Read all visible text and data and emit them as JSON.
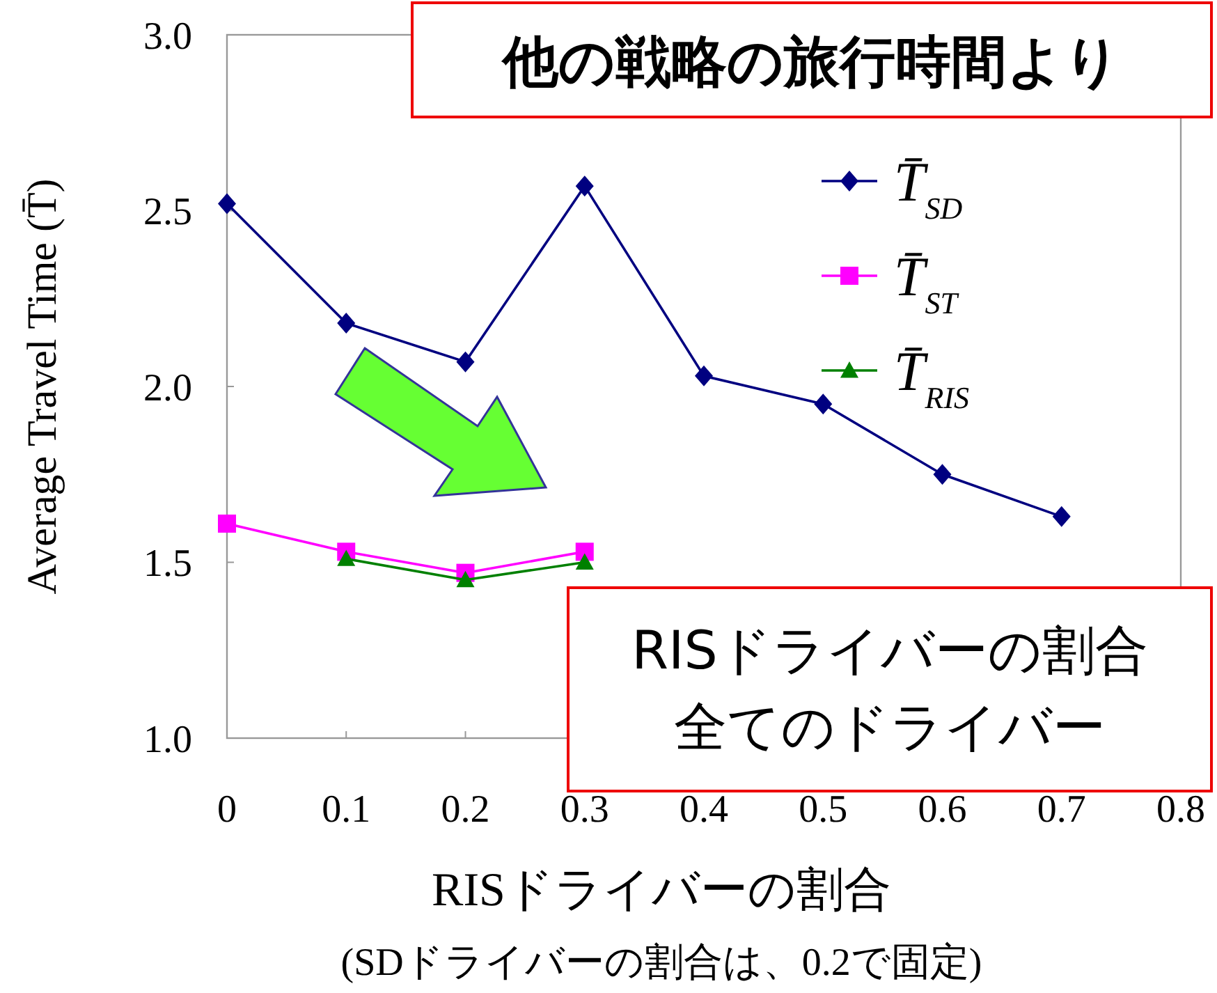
{
  "chart_data": {
    "type": "line",
    "ylabel": "Average Travel  Time (T̄)",
    "xlabel": "RISドライバーの割合",
    "subtitle": "(SDドライバーの割合は、0.2で固定)",
    "x": [
      0,
      0.1,
      0.2,
      0.3,
      0.4,
      0.5,
      0.6,
      0.7
    ],
    "xlim": [
      0,
      0.8
    ],
    "xticks": [
      0,
      0.1,
      0.2,
      0.3,
      0.4,
      0.5,
      0.6,
      0.7,
      0.8
    ],
    "ylim": [
      1,
      3
    ],
    "yticks": [
      {
        "value": 1,
        "label": "1.0"
      },
      {
        "value": 1.5,
        "label": "1.5"
      },
      {
        "value": 2,
        "label": "2.0"
      },
      {
        "value": 2.5,
        "label": "2.5"
      },
      {
        "value": 3,
        "label": "3.0"
      }
    ],
    "series": [
      {
        "name": "T̄$_{SD}$",
        "color": "#000080",
        "marker": "diamond",
        "values": [
          2.52,
          2.18,
          2.07,
          2.57,
          2.03,
          1.95,
          1.75,
          1.63
        ]
      },
      {
        "name": "T̄$_{ST}$",
        "color": "#ff00ff",
        "marker": "square",
        "values": [
          1.61,
          1.53,
          1.47,
          1.53,
          null,
          null,
          null,
          null
        ]
      },
      {
        "name": "T̄$_{RIS}$",
        "color": "#008000",
        "marker": "triangle",
        "values": [
          null,
          1.51,
          1.45,
          1.5,
          null,
          null,
          null,
          null
        ]
      }
    ],
    "legend": "top right",
    "grid": false,
    "line_style": "solid",
    "annotations": [
      "他の戦略の旅行時間より",
      "RISドライバーの割合",
      "全てのドライバー"
    ]
  }
}
